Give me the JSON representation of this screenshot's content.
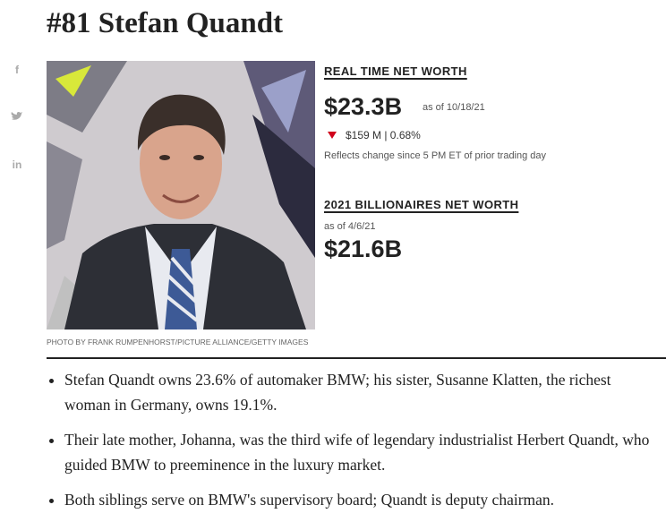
{
  "header": {
    "title": "#81 Stefan Quandt"
  },
  "social": [
    "f",
    "in"
  ],
  "photo": {
    "caption": "PHOTO BY FRANK RUMPENHORST/PICTURE ALLIANCE/GETTY IMAGES"
  },
  "real_time": {
    "heading": "REAL TIME NET WORTH",
    "value": "$23.3B",
    "as_of": "as of 10/18/21",
    "change": "$159 M | 0.68%",
    "note": "Reflects change since 5 PM ET of prior trading day"
  },
  "billionaires": {
    "heading": "2021 BILLIONAIRES NET WORTH",
    "as_of": "as of 4/6/21",
    "value": "$21.6B"
  },
  "bullets": [
    "Stefan Quandt owns 23.6% of automaker BMW; his sister, Susanne Klatten, the richest woman in Germany, owns 19.1%.",
    "Their late mother, Johanna, was the third wife of legendary industrialist Herbert Quandt, who guided BMW to preeminence in the luxury market.",
    "Both siblings serve on BMW's supervisory board; Quandt is deputy chairman."
  ]
}
